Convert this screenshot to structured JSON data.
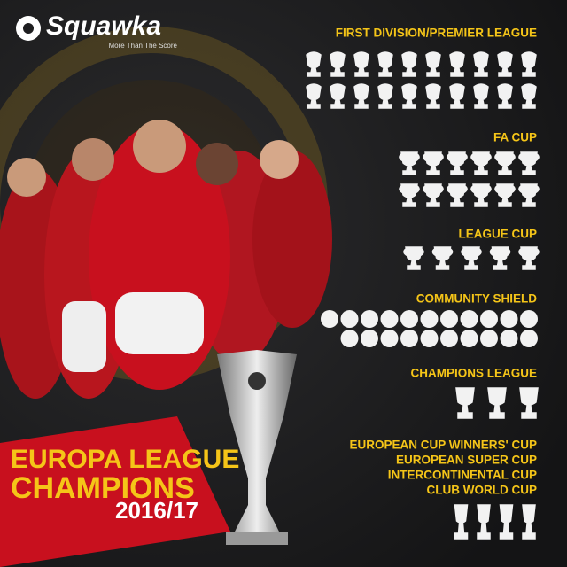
{
  "brand": {
    "name": "Squawka",
    "tagline": "More Than The Score"
  },
  "sections": [
    {
      "titles": [
        "FIRST DIVISION/PREMIER LEAGUE"
      ],
      "count": 20
    },
    {
      "titles": [
        "FA CUP"
      ],
      "count": 12
    },
    {
      "titles": [
        "LEAGUE CUP"
      ],
      "count": 5
    },
    {
      "titles": [
        "COMMUNITY SHIELD"
      ],
      "count": 21
    },
    {
      "titles": [
        "CHAMPIONS LEAGUE"
      ],
      "count": 3
    },
    {
      "titles": [
        "EUROPEAN CUP WINNERS' CUP",
        "EUROPEAN SUPER CUP",
        "INTERCONTINENTAL CUP",
        "CLUB WORLD CUP"
      ],
      "count": 4
    }
  ],
  "banner": {
    "line1": "EUROPA LEAGUE",
    "line2": "CHAMPIONS",
    "season": "2016/17"
  }
}
